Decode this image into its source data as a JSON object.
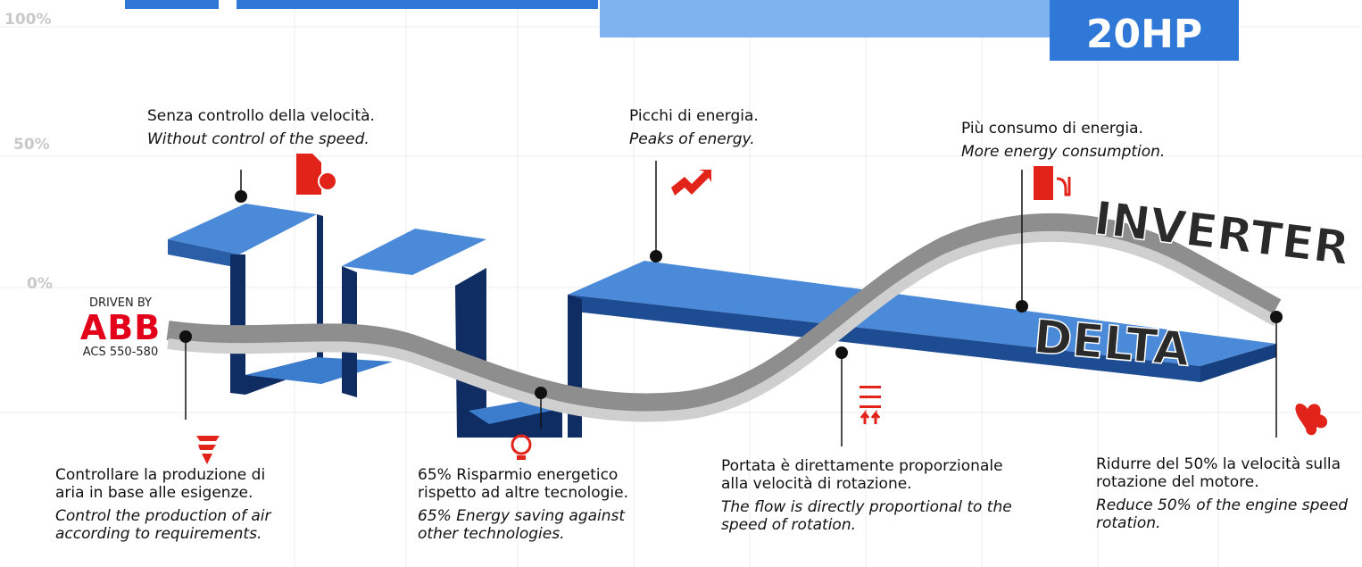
{
  "axis_labels": [
    "100%",
    "50%",
    "0%"
  ],
  "badge": "20HP",
  "brand": {
    "prefix": "DRIVEN BY",
    "logo": "ABB",
    "model": "ACS 550-580"
  },
  "labels": {
    "inverter": "INVERTER",
    "delta": "DELTA"
  },
  "callouts": [
    {
      "it": "Senza controllo della velocità.",
      "en": "Without control of the speed."
    },
    {
      "it": "Picchi di energia.",
      "en": "Peaks of energy."
    },
    {
      "it": "Più consumo di energia.",
      "en": "More energy consumption."
    },
    {
      "it": "Controllare la produzione di aria in base alle esigenze.",
      "en": "Control the production of air according to requirements."
    },
    {
      "it": "65% Risparmio energetico rispetto ad altre tecnologie.",
      "en": "65% Energy saving against other technologies."
    },
    {
      "it": "Portata è direttamente proporzionale alla velocità di rotazione.",
      "en": "The flow is directly proportional to the speed of rotation."
    },
    {
      "it": "Ridurre del 50% la velocità sulla rotazione del motore.",
      "en": "Reduce 50% of the engine speed rotation."
    }
  ]
}
